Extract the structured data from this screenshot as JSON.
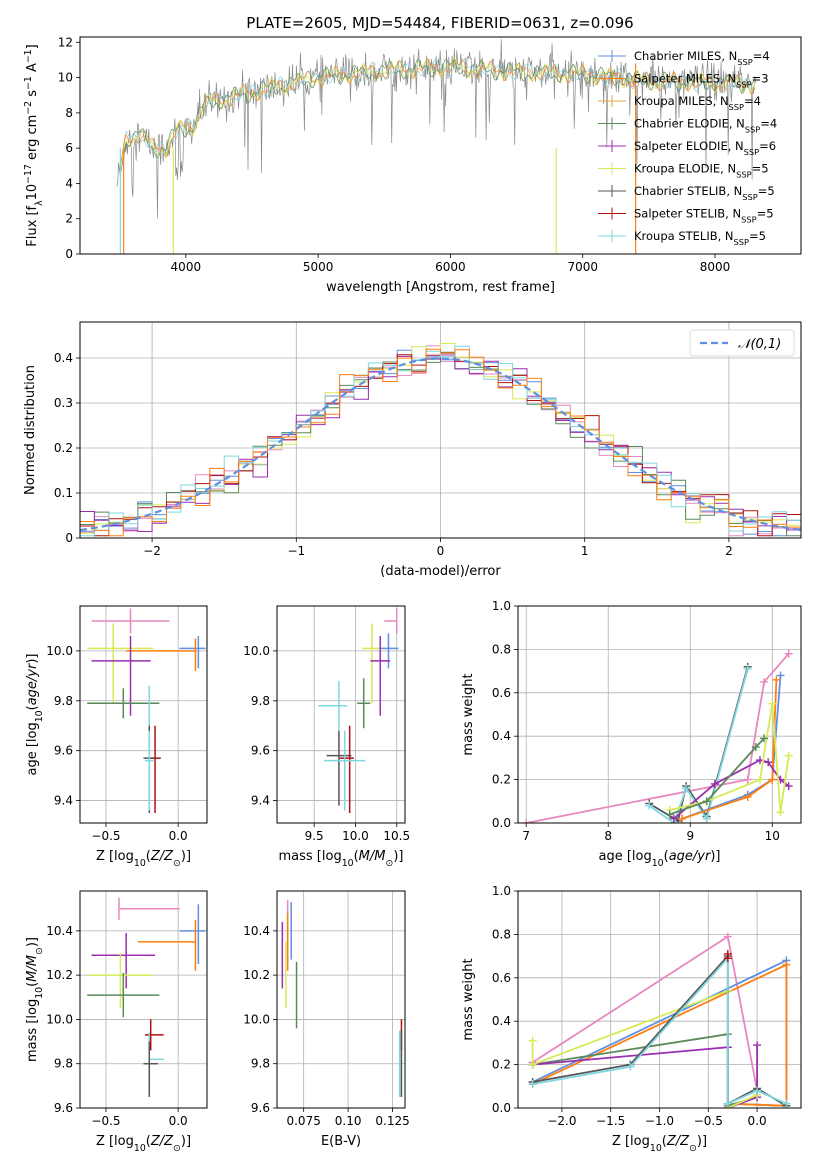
{
  "figure": {
    "title": "PLATE=2605, MJD=54484, FIBERID=0631, z=0.096"
  },
  "colors": {
    "Chabrier MILES": "#5f8fe0",
    "Salpeter MILES": "#ff7f0e",
    "Kroupa MILES": "#e8a43a",
    "Chabrier ELODIE": "#5a8a5a",
    "Salpeter ELODIE": "#9b2fb0",
    "Kroupa ELODIE": "#d6ea55",
    "Chabrier STELIB": "#555555",
    "Salpeter STELIB": "#b01010",
    "Kroupa STELIB": "#7fd6de",
    "pink": "#e887bf"
  },
  "chart_data": [
    {
      "id": "spectrum",
      "type": "line",
      "title": "PLATE=2605, MJD=54484, FIBERID=0631, z=0.096",
      "xlabel": "wavelength [Angstrom, rest frame]",
      "ylabel": "Flux [f_λ 10^-17 erg cm^-2 s^-1 A^-1]",
      "xlim": [
        3200,
        8650
      ],
      "ylim": [
        0,
        12.3
      ],
      "xticks": [
        4000,
        5000,
        6000,
        7000,
        8000
      ],
      "yticks": [
        0,
        2,
        4,
        6,
        8,
        10,
        12
      ],
      "legend_position": "top-right",
      "series": [
        {
          "name": "Chabrier MILES, N_SSP=4",
          "label": "Chabrier MILES, N",
          "sub": "SSP",
          "suffix": "=4"
        },
        {
          "name": "Salpeter MILES, N_SSP=3",
          "label": "Salpeter MILES, N",
          "sub": "SSP",
          "suffix": "=3"
        },
        {
          "name": "Kroupa MILES, N_SSP=4",
          "label": "Kroupa MILES, N",
          "sub": "SSP",
          "suffix": "=4"
        },
        {
          "name": "Chabrier ELODIE, N_SSP=4",
          "label": "Chabrier ELODIE, N",
          "sub": "SSP",
          "suffix": "=4"
        },
        {
          "name": "Salpeter ELODIE, N_SSP=6",
          "label": "Salpeter ELODIE, N",
          "sub": "SSP",
          "suffix": "=6"
        },
        {
          "name": "Kroupa ELODIE, N_SSP=5",
          "label": "Kroupa ELODIE, N",
          "sub": "SSP",
          "suffix": "=5"
        },
        {
          "name": "Chabrier STELIB, N_SSP=5",
          "label": "Chabrier STELIB, N",
          "sub": "SSP",
          "suffix": "=5"
        },
        {
          "name": "Salpeter STELIB, N_SSP=5",
          "label": "Salpeter STELIB, N",
          "sub": "SSP",
          "suffix": "=5"
        },
        {
          "name": "Kroupa STELIB, N_SSP=5",
          "label": "Kroupa STELIB, N",
          "sub": "SSP",
          "suffix": "=5"
        }
      ],
      "spectrum_knots": [
        [
          3480,
          4.0
        ],
        [
          3550,
          6.5
        ],
        [
          3650,
          6.8
        ],
        [
          3750,
          6.0
        ],
        [
          3850,
          6.0
        ],
        [
          3930,
          7.0
        ],
        [
          4050,
          7.2
        ],
        [
          4150,
          8.5
        ],
        [
          4400,
          9.0
        ],
        [
          4700,
          9.5
        ],
        [
          5000,
          10.0
        ],
        [
          5500,
          10.4
        ],
        [
          6000,
          10.6
        ],
        [
          6500,
          10.3
        ],
        [
          7000,
          10.2
        ],
        [
          7500,
          9.8
        ],
        [
          8000,
          9.7
        ],
        [
          8300,
          9.6
        ]
      ]
    },
    {
      "id": "residuals",
      "type": "step",
      "xlabel": "(data-model)/error",
      "ylabel": "Normed distribution",
      "xlim": [
        -2.5,
        2.5
      ],
      "ylim": [
        0,
        0.48
      ],
      "xticks": [
        -2,
        -1,
        0,
        1,
        2
      ],
      "yticks": [
        0.0,
        0.1,
        0.2,
        0.3,
        0.4
      ],
      "legend": "𝒩(0,1)",
      "legend_position": "top-right",
      "reference_curve": "normal(0,1)"
    },
    {
      "id": "age-vs-Z",
      "type": "errorbar",
      "xlabel": "Z [log10(Z/Z⊙)]",
      "ylabel": "age [log10(age/yr)]",
      "xlim": [
        -0.68,
        0.2
      ],
      "ylim": [
        9.31,
        10.18
      ],
      "xticks": [
        -0.5,
        0.0
      ],
      "yticks": [
        9.4,
        9.6,
        9.8,
        10.0
      ],
      "points": [
        {
          "series": "pink",
          "x": -0.33,
          "xerr": [
            0.27,
            0.27
          ],
          "y": 10.12,
          "yerr": [
            0.05,
            0.05
          ]
        },
        {
          "series": "Chabrier MILES",
          "x": 0.14,
          "xerr": [
            0.13,
            0.05
          ],
          "y": 10.01,
          "yerr": [
            0.08,
            0.05
          ]
        },
        {
          "series": "Salpeter MILES",
          "x": 0.12,
          "xerr": [
            0.48,
            0.0
          ],
          "y": 10.0,
          "yerr": [
            0.08,
            0.05
          ]
        },
        {
          "series": "Kroupa ELODIE",
          "x": -0.45,
          "xerr": [
            0.18,
            0.28
          ],
          "y": 10.01,
          "yerr": [
            0.22,
            0.1
          ]
        },
        {
          "series": "Salpeter ELODIE",
          "x": -0.33,
          "xerr": [
            0.27,
            0.14
          ],
          "y": 9.96,
          "yerr": [
            0.22,
            0.1
          ]
        },
        {
          "series": "Chabrier ELODIE",
          "x": -0.38,
          "xerr": [
            0.25,
            0.25
          ],
          "y": 9.79,
          "yerr": [
            0.06,
            0.06
          ]
        },
        {
          "series": "Kroupa STELIB",
          "x": -0.2,
          "xerr": [
            0.0,
            0.0
          ],
          "y": 9.78,
          "yerr": [
            0.12,
            0.08
          ]
        },
        {
          "series": "Salpeter STELIB",
          "x": -0.16,
          "xerr": [
            0.04,
            0.04
          ],
          "y": 9.57,
          "yerr": [
            0.22,
            0.13
          ]
        },
        {
          "series": "Chabrier STELIB",
          "x": -0.2,
          "xerr": [
            0.04,
            0.04
          ],
          "y": 9.57,
          "yerr": [
            0.22,
            0.13
          ]
        },
        {
          "series": "Kroupa STELIB",
          "x": -0.2,
          "xerr": [
            0.03,
            0.03
          ],
          "y": 9.56,
          "yerr": [
            0.2,
            0.12
          ]
        }
      ]
    },
    {
      "id": "age-vs-mass",
      "type": "errorbar",
      "xlabel": "mass [log10(M/M⊙)]",
      "ylabel": "",
      "xlim": [
        9.05,
        10.6
      ],
      "ylim": [
        9.31,
        10.18
      ],
      "xticks": [
        9.5,
        10.0,
        10.5
      ],
      "yticks": [
        9.4,
        9.6,
        9.8,
        10.0
      ],
      "points": [
        {
          "series": "pink",
          "x": 10.5,
          "xerr": [
            0.15,
            0.0
          ],
          "y": 10.12,
          "yerr": [
            0.05,
            0.05
          ]
        },
        {
          "series": "Chabrier MILES",
          "x": 10.4,
          "xerr": [
            0.12,
            0.12
          ],
          "y": 10.01,
          "yerr": [
            0.08,
            0.06
          ]
        },
        {
          "series": "Kroupa ELODIE",
          "x": 10.2,
          "xerr": [
            0.12,
            0.1
          ],
          "y": 10.01,
          "yerr": [
            0.22,
            0.1
          ]
        },
        {
          "series": "Salpeter ELODIE",
          "x": 10.3,
          "xerr": [
            0.12,
            0.12
          ],
          "y": 9.96,
          "yerr": [
            0.22,
            0.1
          ]
        },
        {
          "series": "Chabrier ELODIE",
          "x": 10.1,
          "xerr": [
            0.08,
            0.08
          ],
          "y": 9.79,
          "yerr": [
            0.1,
            0.1
          ]
        },
        {
          "series": "Kroupa STELIB",
          "x": 9.8,
          "xerr": [
            0.25,
            0.1
          ],
          "y": 9.78,
          "yerr": [
            0.1,
            0.1
          ]
        },
        {
          "series": "Chabrier STELIB",
          "x": 9.8,
          "xerr": [
            0.15,
            0.15
          ],
          "y": 9.58,
          "yerr": [
            0.2,
            0.1
          ]
        },
        {
          "series": "Salpeter STELIB",
          "x": 9.93,
          "xerr": [
            0.12,
            0.05
          ],
          "y": 9.57,
          "yerr": [
            0.22,
            0.13
          ]
        },
        {
          "series": "Kroupa STELIB",
          "x": 9.87,
          "xerr": [
            0.25,
            0.25
          ],
          "y": 9.56,
          "yerr": [
            0.2,
            0.12
          ]
        }
      ]
    },
    {
      "id": "weight-vs-age",
      "type": "line",
      "xlabel": "age [log10(age/yr)]",
      "ylabel": "mass weight",
      "xlim": [
        6.9,
        10.35
      ],
      "ylim": [
        0,
        1.0
      ],
      "xticks": [
        7,
        8,
        9,
        10
      ],
      "yticks": [
        0.0,
        0.2,
        0.4,
        0.6,
        0.8,
        1.0
      ],
      "series": [
        {
          "series": "pink",
          "x": [
            7.0,
            9.7,
            9.9,
            10.2
          ],
          "y": [
            0.0,
            0.2,
            0.65,
            0.78
          ]
        },
        {
          "series": "Chabrier STELIB",
          "x": [
            8.5,
            8.85,
            8.95,
            9.2,
            9.7
          ],
          "y": [
            0.09,
            0.01,
            0.17,
            0.03,
            0.72
          ]
        },
        {
          "series": "Kroupa STELIB",
          "x": [
            8.5,
            8.8,
            8.95,
            9.2,
            9.7
          ],
          "y": [
            0.08,
            0.0,
            0.16,
            0.02,
            0.71
          ]
        },
        {
          "series": "Chabrier MILES",
          "x": [
            8.9,
            9.7,
            10.0,
            10.1
          ],
          "y": [
            0.02,
            0.13,
            0.2,
            0.68
          ]
        },
        {
          "series": "Salpeter MILES",
          "x": [
            8.9,
            9.7,
            10.0,
            10.05
          ],
          "y": [
            0.02,
            0.12,
            0.2,
            0.66
          ]
        },
        {
          "series": "Salpeter ELODIE",
          "x": [
            8.8,
            9.3,
            9.85,
            9.95,
            10.1,
            10.2
          ],
          "y": [
            0.02,
            0.18,
            0.29,
            0.28,
            0.2,
            0.17
          ]
        },
        {
          "series": "Kroupa ELODIE",
          "x": [
            8.75,
            9.2,
            9.85,
            10.0,
            10.1,
            10.2
          ],
          "y": [
            0.06,
            0.1,
            0.2,
            0.55,
            0.05,
            0.31
          ]
        },
        {
          "series": "Chabrier ELODIE",
          "x": [
            8.75,
            9.2,
            9.8,
            9.9
          ],
          "y": [
            0.04,
            0.1,
            0.35,
            0.39
          ]
        }
      ]
    },
    {
      "id": "mass-vs-Z",
      "type": "errorbar",
      "xlabel": "Z [log10(Z/Z⊙)]",
      "ylabel": "mass [log10(M/M⊙)]",
      "xlim": [
        -0.68,
        0.2
      ],
      "ylim": [
        9.6,
        10.58
      ],
      "xticks": [
        -0.5,
        0.0
      ],
      "yticks": [
        9.6,
        9.8,
        10.0,
        10.2,
        10.4
      ],
      "points": [
        {
          "series": "pink",
          "x": -0.41,
          "xerr": [
            0.0,
            0.42
          ],
          "y": 10.5,
          "yerr": [
            0.05,
            0.05
          ]
        },
        {
          "series": "Chabrier MILES",
          "x": 0.14,
          "xerr": [
            0.13,
            0.05
          ],
          "y": 10.4,
          "yerr": [
            0.15,
            0.12
          ]
        },
        {
          "series": "Salpeter MILES",
          "x": 0.12,
          "xerr": [
            0.4,
            0.0
          ],
          "y": 10.35,
          "yerr": [
            0.13,
            0.1
          ]
        },
        {
          "series": "Salpeter ELODIE",
          "x": -0.36,
          "xerr": [
            0.24,
            0.2
          ],
          "y": 10.29,
          "yerr": [
            0.15,
            0.1
          ]
        },
        {
          "series": "Kroupa ELODIE",
          "x": -0.4,
          "xerr": [
            0.22,
            0.22
          ],
          "y": 10.2,
          "yerr": [
            0.15,
            0.1
          ]
        },
        {
          "series": "Chabrier ELODIE",
          "x": -0.38,
          "xerr": [
            0.25,
            0.25
          ],
          "y": 10.11,
          "yerr": [
            0.1,
            0.1
          ]
        },
        {
          "series": "Salpeter STELIB",
          "x": -0.19,
          "xerr": [
            0.04,
            0.09
          ],
          "y": 9.93,
          "yerr": [
            0.07,
            0.07
          ]
        },
        {
          "series": "Kroupa STELIB",
          "x": -0.2,
          "xerr": [
            0.0,
            0.1
          ],
          "y": 9.82,
          "yerr": [
            0.12,
            0.12
          ]
        },
        {
          "series": "Chabrier STELIB",
          "x": -0.2,
          "xerr": [
            0.04,
            0.06
          ],
          "y": 9.8,
          "yerr": [
            0.15,
            0.1
          ]
        }
      ]
    },
    {
      "id": "mass-vs-EBV",
      "type": "errorbar",
      "xlabel": "E(B-V)",
      "ylabel": "",
      "xlim": [
        0.06,
        0.132
      ],
      "ylim": [
        9.6,
        10.58
      ],
      "xticks": [
        0.075,
        0.1,
        0.125
      ],
      "yticks": [
        9.6,
        9.8,
        10.0,
        10.2,
        10.4
      ],
      "points": [
        {
          "series": "pink",
          "x": 0.066,
          "xerr": [
            0.0,
            0.0
          ],
          "y": 10.4,
          "yerr": [
            0.14,
            0.14
          ]
        },
        {
          "series": "Chabrier MILES",
          "x": 0.068,
          "xerr": [
            0.0,
            0.0
          ],
          "y": 10.4,
          "yerr": [
            0.13,
            0.13
          ]
        },
        {
          "series": "Salpeter MILES",
          "x": 0.066,
          "xerr": [
            0.0,
            0.0
          ],
          "y": 10.35,
          "yerr": [
            0.13,
            0.13
          ]
        },
        {
          "series": "Salpeter ELODIE",
          "x": 0.063,
          "xerr": [
            0.0,
            0.0
          ],
          "y": 10.29,
          "yerr": [
            0.15,
            0.15
          ]
        },
        {
          "series": "Kroupa ELODIE",
          "x": 0.065,
          "xerr": [
            0.0,
            0.0
          ],
          "y": 10.2,
          "yerr": [
            0.15,
            0.15
          ]
        },
        {
          "series": "Chabrier ELODIE",
          "x": 0.071,
          "xerr": [
            0.0,
            0.0
          ],
          "y": 10.11,
          "yerr": [
            0.15,
            0.15
          ]
        },
        {
          "series": "Salpeter STELIB",
          "x": 0.13,
          "xerr": [
            0.0,
            0.0
          ],
          "y": 9.93,
          "yerr": [
            0.07,
            0.07
          ]
        },
        {
          "series": "Kroupa STELIB",
          "x": 0.129,
          "xerr": [
            0.0,
            0.0
          ],
          "y": 9.8,
          "yerr": [
            0.15,
            0.15
          ]
        },
        {
          "series": "Chabrier STELIB",
          "x": 0.13,
          "xerr": [
            0.0,
            0.0
          ],
          "y": 9.8,
          "yerr": [
            0.15,
            0.15
          ]
        }
      ]
    },
    {
      "id": "weight-vs-Z",
      "type": "line",
      "xlabel": "Z [log10(Z/Z⊙)]",
      "ylabel": "mass weight",
      "xlim": [
        -2.45,
        0.45
      ],
      "ylim": [
        0,
        1.0
      ],
      "xticks": [
        -2.0,
        -1.5,
        -1.0,
        -0.5,
        0.0
      ],
      "yticks": [
        0.0,
        0.2,
        0.4,
        0.6,
        0.8,
        1.0
      ],
      "series": [
        {
          "series": "pink",
          "x": [
            -2.3,
            -0.3,
            0.0
          ],
          "y": [
            0.21,
            0.79,
            0.08
          ]
        },
        {
          "series": "Chabrier MILES",
          "x": [
            -2.3,
            0.3,
            0.3,
            -0.3
          ],
          "y": [
            0.12,
            0.68,
            0.01,
            0.02
          ]
        },
        {
          "series": "Salpeter MILES",
          "x": [
            -2.3,
            0.3,
            0.3,
            -0.3
          ],
          "y": [
            0.11,
            0.66,
            0.01,
            0.02
          ]
        },
        {
          "series": "Chabrier ELODIE",
          "x": [
            -2.3,
            -0.3,
            -0.3,
            0.0
          ],
          "y": [
            0.2,
            0.34,
            0.01,
            0.05
          ]
        },
        {
          "series": "Salpeter ELODIE",
          "x": [
            -2.3,
            -0.3,
            -0.3,
            0.0,
            0.0
          ],
          "y": [
            0.2,
            0.28,
            0.0,
            0.05,
            0.29
          ]
        },
        {
          "series": "Kroupa ELODIE",
          "x": [
            -2.3,
            -2.3,
            -0.3,
            -0.3,
            0.0
          ],
          "y": [
            0.31,
            0.2,
            0.54,
            0.0,
            0.06
          ]
        },
        {
          "series": "Chabrier STELIB",
          "x": [
            -2.3,
            -1.3,
            -0.3,
            -0.3,
            0.0,
            0.3
          ],
          "y": [
            0.12,
            0.2,
            0.7,
            0.02,
            0.09,
            0.01
          ]
        },
        {
          "series": "Kroupa STELIB",
          "x": [
            -2.3,
            -1.3,
            -0.3,
            -0.3,
            0.0,
            0.3
          ],
          "y": [
            0.11,
            0.19,
            0.69,
            0.02,
            0.08,
            0.02
          ]
        },
        {
          "series": "Salpeter STELIB",
          "x": [
            -0.3,
            -0.3
          ],
          "y": [
            0.71,
            0.69
          ]
        }
      ]
    }
  ]
}
